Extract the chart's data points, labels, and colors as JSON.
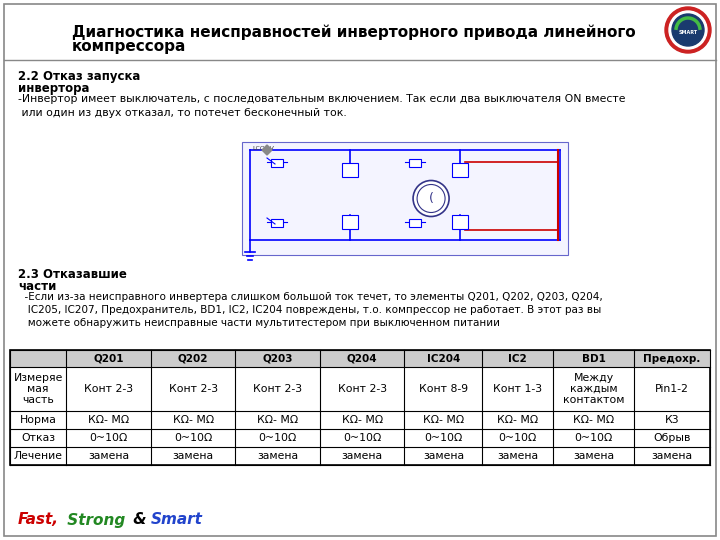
{
  "title_line1": "Диагностика неисправностей инверторного привода линейного",
  "title_line2": "компрессора",
  "section_22_bold1": "2.2 Отказ запуска",
  "section_22_bold2": "инвертора",
  "section_22_text": "-Инвертор имеет выключатель, с последовательным включением. Так если два выключателя ON вместе\n или один из двух отказал, то потечет бесконечный ток.",
  "section_23_bold1": "2.3 Отказавшие",
  "section_23_bold2": "части",
  "section_23_text": "  -Если из-за неисправного инвертера слишком большой ток течет, то элементы Q201, Q202, Q203, Q204,\n   IC205, IC207, Предохранитель, BD1, IC2, IC204 повреждены, т.о. компрессор не работает. В этот раз вы\n   можете обнаружить неисправные части мультитестером при выключенном питании",
  "table_headers": [
    "",
    "Q201",
    "Q202",
    "Q203",
    "Q204",
    "IC204",
    "IC2",
    "BD1",
    "Предохр."
  ],
  "table_row1": [
    "Измеряе\nмая\nчасть",
    "Конт 2-3",
    "Конт 2-3",
    "Конт 2-3",
    "Конт 2-3",
    "Конт 8-9",
    "Конт 1-3",
    "Между\nкаждым\nконтактом",
    "Pin1-2"
  ],
  "table_row2": [
    "Норма",
    "КΩ- МΩ",
    "КΩ- МΩ",
    "КΩ- МΩ",
    "КΩ- МΩ",
    "КΩ- МΩ",
    "КΩ- МΩ",
    "КΩ- МΩ",
    "К3"
  ],
  "table_row3": [
    "Отказ",
    "0~10Ω",
    "0~10Ω",
    "0~10Ω",
    "0~10Ω",
    "0~10Ω",
    "0~10Ω",
    "0~10Ω",
    "Обрыв"
  ],
  "table_row4": [
    "Лечение",
    "замена",
    "замена",
    "замена",
    "замена",
    "замена",
    "замена",
    "замена",
    "замена"
  ],
  "bg_color": "#ffffff"
}
